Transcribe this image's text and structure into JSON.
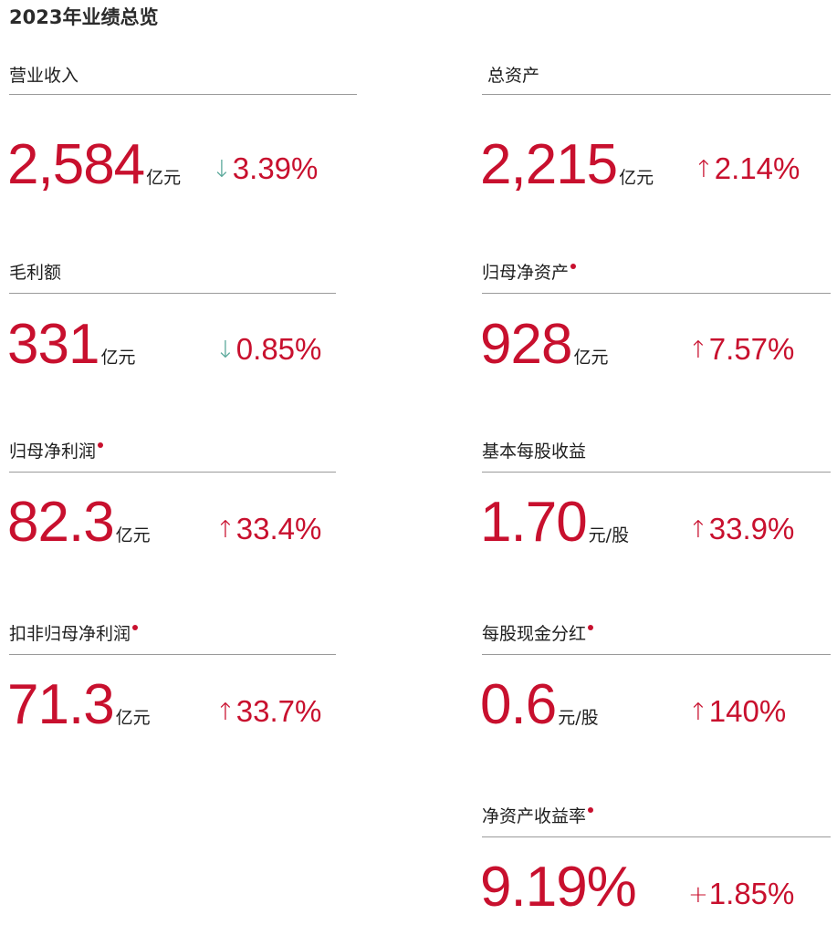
{
  "title": "2023年业绩总览",
  "metrics": {
    "revenue": {
      "label": "营业收入",
      "value": "2,584",
      "unit": "亿元",
      "arrow": "↓",
      "direction": "down",
      "change": "3.39%"
    },
    "total_assets": {
      "label": "总资产",
      "value": "2,215",
      "unit": "亿元",
      "arrow": "↑",
      "direction": "up",
      "change": "2.14%"
    },
    "gross_profit": {
      "label": "毛利额",
      "value": "331",
      "unit": "亿元",
      "arrow": "↓",
      "direction": "down",
      "change": "0.85%"
    },
    "net_assets": {
      "label": "归母净资产",
      "value": "928",
      "unit": "亿元",
      "arrow": "↑",
      "direction": "up",
      "change": "7.57%"
    },
    "net_profit": {
      "label": "归母净利润",
      "value": "82.3",
      "unit": "亿元",
      "arrow": "↑",
      "direction": "up",
      "change": "33.4%"
    },
    "eps": {
      "label": "基本每股收益",
      "value": "1.70",
      "unit": "元/股",
      "arrow": "↑",
      "direction": "up",
      "change": "33.9%"
    },
    "adjusted_net_profit": {
      "label": "扣非归母净利润",
      "value": "71.3",
      "unit": "亿元",
      "arrow": "↑",
      "direction": "up",
      "change": "33.7%"
    },
    "dividend": {
      "label": "每股现金分红",
      "value": "0.6",
      "unit": "元/股",
      "arrow": "↑",
      "direction": "up",
      "change": "140%"
    },
    "roe": {
      "label": "净资产收益率",
      "value": "9.19%",
      "unit": "",
      "arrow": "+",
      "direction": "plus",
      "change": "1.85%"
    }
  },
  "colors": {
    "accent": "#c8102e",
    "down_arrow": "#5aa89a",
    "rule": "#9a9a9a",
    "text": "#1e1e1e"
  },
  "icons": {
    "down": "arrow-down-icon",
    "up": "arrow-up-icon",
    "plus": "plus-icon",
    "note": "footnote-marker-icon"
  }
}
